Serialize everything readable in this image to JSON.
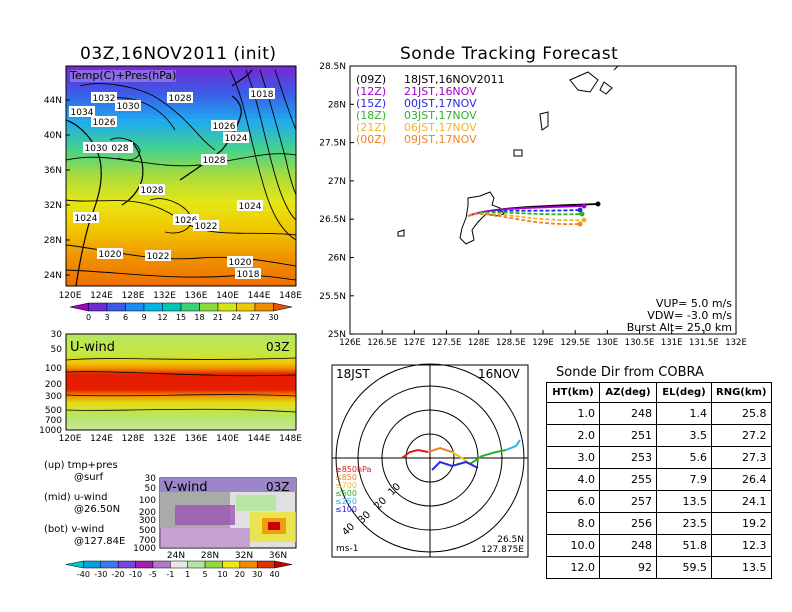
{
  "left_top": {
    "title": "03Z,16NOV2011 (init)",
    "label": "Temp(C)+Pres(hPa)",
    "lat_ticks": [
      "44N",
      "40N",
      "36N",
      "32N",
      "28N",
      "24N"
    ],
    "lon_ticks": [
      "120E",
      "124E",
      "128E",
      "132E",
      "136E",
      "140E",
      "144E",
      "148E"
    ],
    "pressure_labels": [
      "1032",
      "1030",
      "1028",
      "1018",
      "1034",
      "1026",
      "1026",
      "1024",
      "1030",
      "028",
      "1028",
      "1028",
      "1024",
      "1026",
      "1022",
      "1024",
      "1020",
      "1022",
      "1020",
      "1018"
    ],
    "colorbar_ticks": [
      "0",
      "3",
      "6",
      "9",
      "12",
      "15",
      "18",
      "21",
      "24",
      "27",
      "30"
    ],
    "colorbar_colors": [
      "#a000c8",
      "#6e28d8",
      "#3c5ae8",
      "#1e8cf0",
      "#00b4e8",
      "#00c8b4",
      "#3cd278",
      "#8cdc3c",
      "#d2e614",
      "#f0c800",
      "#f08c00",
      "#e65000"
    ]
  },
  "left_mid": {
    "title": "U-wind",
    "time": "03Z",
    "p_ticks": [
      "30",
      "50",
      "100",
      "200",
      "300",
      "500",
      "700",
      "1000"
    ],
    "lon_ticks": [
      "120E",
      "124E",
      "128E",
      "132E",
      "136E",
      "140E",
      "144E",
      "148E"
    ]
  },
  "left_bot": {
    "title": "V-wind",
    "time": "03Z",
    "p_ticks": [
      "30",
      "50",
      "100",
      "200",
      "300",
      "500",
      "700",
      "1000"
    ],
    "lat_ticks": [
      "24N",
      "28N",
      "32N",
      "36N"
    ],
    "notes": [
      "(up) tmp+pres",
      "@surf",
      "(mid) u-wind",
      "@26.50N",
      "(bot) v-wind",
      "@127.84E"
    ],
    "colorbar_ticks": [
      "-40",
      "-30",
      "-20",
      "-10",
      "-5",
      "-1",
      "1",
      "5",
      "10",
      "20",
      "30",
      "40"
    ],
    "colorbar_colors": [
      "#00c8c8",
      "#00a0e6",
      "#3c78f0",
      "#7846dc",
      "#a01eb4",
      "#b478c8",
      "#e6e6e6",
      "#b4e6a0",
      "#8cdc3c",
      "#f0e614",
      "#f08c00",
      "#dc3200",
      "#c80000"
    ]
  },
  "track_map": {
    "title": "Sonde Tracking Forecast",
    "lat_ticks": [
      "28.5N",
      "28N",
      "27.5N",
      "27N",
      "26.5N",
      "26N",
      "25.5N",
      "25N"
    ],
    "lon_ticks": [
      "126E",
      "126.5E",
      "127E",
      "127.5E",
      "128E",
      "128.5E",
      "129E",
      "129.5E",
      "130E",
      "130.5E",
      "131E",
      "131.5E",
      "132E"
    ],
    "legend": [
      {
        "code": "(09Z)",
        "time": "18JST,16NOV2011",
        "color": "#000000"
      },
      {
        "code": "(12Z)",
        "time": "21JST,16NOV",
        "color": "#a000c8"
      },
      {
        "code": "(15Z)",
        "time": "00JST,17NOV",
        "color": "#2828e6"
      },
      {
        "code": "(18Z)",
        "time": "03JST,17NOV",
        "color": "#28b428"
      },
      {
        "code": "(21Z)",
        "time": "06JST,17NOV",
        "color": "#f0b428"
      },
      {
        "code": "(00Z)",
        "time": "09JST,17NOV",
        "color": "#f08228"
      }
    ],
    "params": [
      "VUP= 5.0 m/s",
      "VDW= -3.0 m/s",
      "Burst Alt= 25.0 km"
    ]
  },
  "polar": {
    "time": "18JST",
    "date": "16NOV",
    "ring_labels": [
      "10",
      "20",
      "30",
      "40"
    ],
    "levels": [
      {
        "label": "≥850hPa",
        "color": "#dc1e1e"
      },
      {
        "label": "≤850",
        "color": "#f08228"
      },
      {
        "label": "≤700",
        "color": "#e6c828"
      },
      {
        "label": "≤500",
        "color": "#28b428"
      },
      {
        "label": "≤250",
        "color": "#28b4e6"
      },
      {
        "label": "≤100",
        "color": "#2828e6"
      }
    ],
    "units": "ms-1",
    "loc_lat": "26.5N",
    "loc_lon": "127.875E"
  },
  "sonde_table": {
    "title": "Sonde Dir from COBRA",
    "headers": [
      "HT(km)",
      "AZ(deg)",
      "EL(deg)",
      "RNG(km)"
    ],
    "rows": [
      [
        "1.0",
        "248",
        "1.4",
        "25.8"
      ],
      [
        "2.0",
        "251",
        "3.5",
        "27.2"
      ],
      [
        "3.0",
        "253",
        "5.6",
        "27.3"
      ],
      [
        "4.0",
        "255",
        "7.9",
        "26.4"
      ],
      [
        "6.0",
        "257",
        "13.5",
        "24.1"
      ],
      [
        "8.0",
        "256",
        "23.5",
        "19.2"
      ],
      [
        "10.0",
        "248",
        "51.8",
        "12.3"
      ],
      [
        "12.0",
        "92",
        "59.5",
        "13.5"
      ]
    ]
  }
}
